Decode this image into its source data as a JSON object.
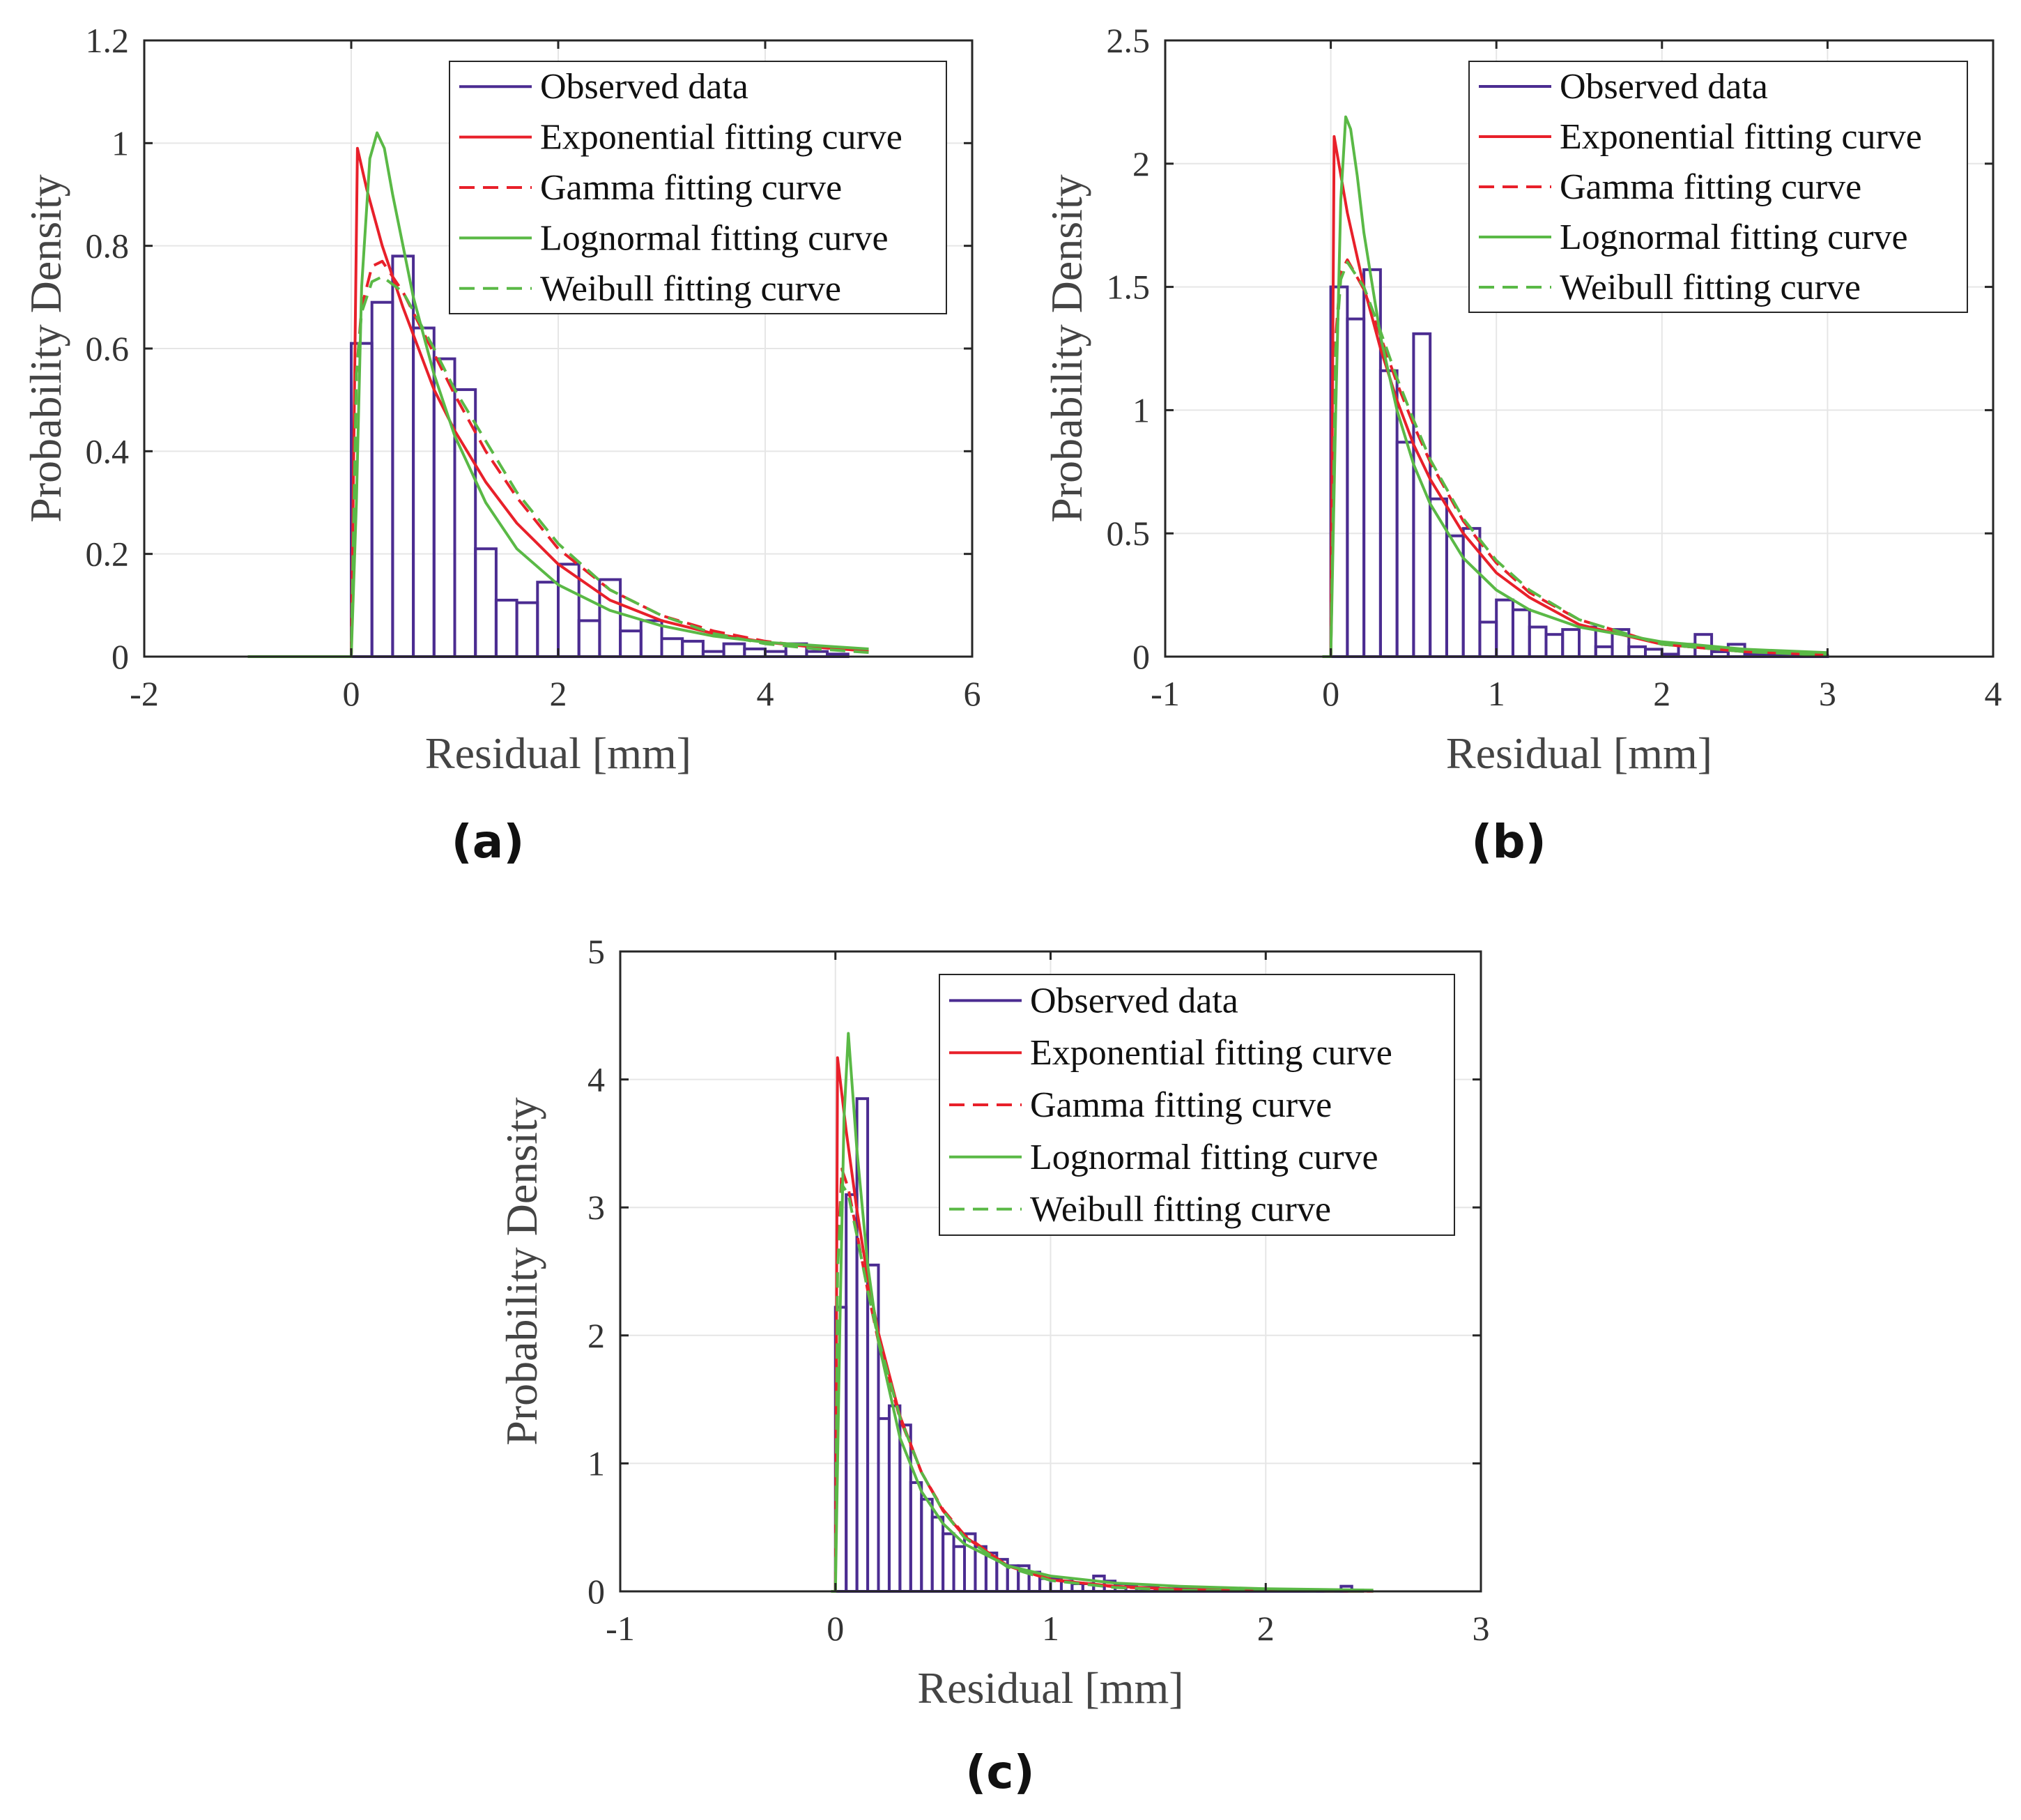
{
  "figure": {
    "legend_labels": [
      "Observed data",
      "Exponential fitting curve",
      "Gamma fitting curve",
      "Lognormal fitting curve",
      "Weibull fitting curve"
    ],
    "colors": {
      "observed": "#4b2c91",
      "red": "#e8202a",
      "green": "#5ab946",
      "grid": "#e6e6e6",
      "axis": "#262626"
    }
  },
  "chart_data": [
    {
      "type": "bar",
      "panel_label": "(a)",
      "xlabel": "Residual [mm]",
      "ylabel": "Probability Density",
      "xlim": [
        -2,
        6
      ],
      "ylim": [
        0,
        1.2
      ],
      "xticks": [
        -2,
        0,
        2,
        4,
        6
      ],
      "yticks": [
        0,
        0.2,
        0.4,
        0.6,
        0.8,
        1,
        1.2
      ],
      "xtick_labels": [
        "-2",
        "0",
        "2",
        "4",
        "6"
      ],
      "ytick_labels": [
        "0",
        "0.2",
        "0.4",
        "0.6",
        "0.8",
        "1",
        "1.2"
      ],
      "grid": true,
      "legend_position": "top-right",
      "histogram": {
        "name": "Observed data",
        "bin_start": 0,
        "bin_width": 0.2,
        "values": [
          0.61,
          0.69,
          0.78,
          0.64,
          0.58,
          0.52,
          0.21,
          0.11,
          0.105,
          0.145,
          0.18,
          0.07,
          0.15,
          0.05,
          0.07,
          0.035,
          0.03,
          0.01,
          0.025,
          0.015,
          0.01,
          0.025,
          0.01,
          0.005
        ]
      },
      "curves": [
        {
          "name": "Exponential fitting curve",
          "color": "red",
          "dash": false,
          "x": [
            -1,
            0,
            0.06,
            0.15,
            0.3,
            0.5,
            0.8,
            1.0,
            1.3,
            1.6,
            2.0,
            2.5,
            3.0,
            3.5,
            4.0,
            4.5,
            5.0
          ],
          "y": [
            0,
            0,
            0.99,
            0.91,
            0.8,
            0.68,
            0.52,
            0.44,
            0.34,
            0.26,
            0.18,
            0.11,
            0.07,
            0.045,
            0.028,
            0.018,
            0.011
          ]
        },
        {
          "name": "Gamma fitting curve",
          "color": "red",
          "dash": true,
          "x": [
            -1,
            0,
            0.05,
            0.1,
            0.2,
            0.3,
            0.5,
            0.8,
            1.0,
            1.3,
            1.6,
            2.0,
            2.5,
            3.0,
            3.5,
            4.0,
            4.5,
            5.0
          ],
          "y": [
            0,
            0,
            0.55,
            0.68,
            0.76,
            0.77,
            0.71,
            0.59,
            0.51,
            0.4,
            0.31,
            0.21,
            0.13,
            0.08,
            0.05,
            0.03,
            0.018,
            0.011
          ]
        },
        {
          "name": "Lognormal fitting curve",
          "color": "green",
          "dash": false,
          "x": [
            -1,
            0,
            0.05,
            0.1,
            0.18,
            0.25,
            0.32,
            0.4,
            0.5,
            0.6,
            0.8,
            1.0,
            1.3,
            1.6,
            2.0,
            2.5,
            3.0,
            3.5,
            4.0,
            5.0
          ],
          "y": [
            0,
            0,
            0.3,
            0.72,
            0.97,
            1.02,
            0.99,
            0.9,
            0.8,
            0.7,
            0.55,
            0.43,
            0.3,
            0.21,
            0.14,
            0.09,
            0.06,
            0.04,
            0.028,
            0.015
          ]
        },
        {
          "name": "Weibull fitting curve",
          "color": "green",
          "dash": true,
          "x": [
            -1,
            0,
            0.05,
            0.1,
            0.2,
            0.3,
            0.5,
            0.8,
            1.0,
            1.3,
            1.6,
            2.0,
            2.5,
            3.0,
            3.5,
            4.0,
            4.5,
            5.0
          ],
          "y": [
            0,
            0,
            0.55,
            0.67,
            0.73,
            0.74,
            0.71,
            0.6,
            0.52,
            0.42,
            0.32,
            0.22,
            0.13,
            0.08,
            0.045,
            0.025,
            0.015,
            0.008
          ]
        }
      ]
    },
    {
      "type": "bar",
      "panel_label": "(b)",
      "xlabel": "Residual [mm]",
      "ylabel": "Probability Density",
      "xlim": [
        -1,
        4
      ],
      "ylim": [
        0,
        2.5
      ],
      "xticks": [
        -1,
        0,
        1,
        2,
        3,
        4
      ],
      "yticks": [
        0,
        0.5,
        1,
        1.5,
        2,
        2.5
      ],
      "xtick_labels": [
        "-1",
        "0",
        "1",
        "2",
        "3",
        "4"
      ],
      "ytick_labels": [
        "0",
        "0.5",
        "1",
        "1.5",
        "2",
        "2.5"
      ],
      "grid": true,
      "legend_position": "top-right",
      "histogram": {
        "name": "Observed data",
        "bin_start": 0,
        "bin_width": 0.1,
        "values": [
          1.5,
          1.37,
          1.57,
          1.16,
          0.87,
          1.31,
          0.64,
          0.49,
          0.52,
          0.14,
          0.23,
          0.19,
          0.12,
          0.09,
          0.11,
          0.12,
          0.04,
          0.11,
          0.04,
          0.03,
          0.01,
          0.05,
          0.09,
          0.02,
          0.05,
          0.01,
          0.01,
          0.01,
          0.01,
          0.005
        ]
      },
      "curves": [
        {
          "name": "Exponential fitting curve",
          "color": "red",
          "dash": false,
          "x": [
            -0.05,
            0,
            0.02,
            0.1,
            0.2,
            0.3,
            0.4,
            0.5,
            0.6,
            0.8,
            1.0,
            1.2,
            1.5,
            2.0,
            2.5,
            3.0
          ],
          "y": [
            0,
            0,
            2.11,
            1.8,
            1.5,
            1.25,
            1.04,
            0.86,
            0.72,
            0.5,
            0.34,
            0.24,
            0.13,
            0.05,
            0.02,
            0.008
          ]
        },
        {
          "name": "Gamma fitting curve",
          "color": "red",
          "dash": true,
          "x": [
            -0.05,
            0,
            0.03,
            0.06,
            0.1,
            0.2,
            0.3,
            0.4,
            0.5,
            0.6,
            0.8,
            1.0,
            1.2,
            1.5,
            2.0,
            2.5,
            3.0
          ],
          "y": [
            0,
            0,
            1.3,
            1.56,
            1.61,
            1.49,
            1.3,
            1.11,
            0.94,
            0.79,
            0.55,
            0.38,
            0.26,
            0.15,
            0.05,
            0.02,
            0.007
          ]
        },
        {
          "name": "Lognormal fitting curve",
          "color": "green",
          "dash": false,
          "x": [
            -0.05,
            0,
            0.03,
            0.06,
            0.09,
            0.12,
            0.16,
            0.2,
            0.3,
            0.4,
            0.5,
            0.6,
            0.8,
            1.0,
            1.2,
            1.5,
            2.0,
            2.5,
            3.0
          ],
          "y": [
            0,
            0,
            1.0,
            1.85,
            2.19,
            2.14,
            1.95,
            1.72,
            1.3,
            1.0,
            0.78,
            0.62,
            0.4,
            0.27,
            0.19,
            0.12,
            0.06,
            0.03,
            0.016
          ]
        },
        {
          "name": "Weibull fitting curve",
          "color": "green",
          "dash": true,
          "x": [
            -0.05,
            0,
            0.03,
            0.06,
            0.1,
            0.2,
            0.3,
            0.4,
            0.5,
            0.6,
            0.8,
            1.0,
            1.2,
            1.5,
            2.0,
            2.5,
            3.0
          ],
          "y": [
            0,
            0,
            1.25,
            1.53,
            1.6,
            1.5,
            1.32,
            1.13,
            0.96,
            0.8,
            0.56,
            0.39,
            0.27,
            0.15,
            0.05,
            0.02,
            0.006
          ]
        }
      ]
    },
    {
      "type": "bar",
      "panel_label": "(c)",
      "xlabel": "Residual [mm]",
      "ylabel": "Probability Density",
      "xlim": [
        -1,
        3
      ],
      "ylim": [
        0,
        5
      ],
      "xticks": [
        -1,
        0,
        1,
        2,
        3
      ],
      "yticks": [
        0,
        1,
        2,
        3,
        4,
        5
      ],
      "xtick_labels": [
        "-1",
        "0",
        "1",
        "2",
        "3"
      ],
      "ytick_labels": [
        "0",
        "1",
        "2",
        "3",
        "4",
        "5"
      ],
      "grid": true,
      "legend_position": "top-right",
      "histogram": {
        "name": "Observed data",
        "bin_start": 0,
        "bin_width": 0.05,
        "values": [
          2.22,
          3.1,
          3.85,
          2.55,
          1.35,
          1.45,
          1.3,
          0.85,
          0.72,
          0.58,
          0.45,
          0.35,
          0.45,
          0.35,
          0.3,
          0.25,
          0.2,
          0.2,
          0.15,
          0.1,
          0.1,
          0.08,
          0.06,
          0.06,
          0.12,
          0.08,
          0.06,
          0.04,
          0.03,
          0.03,
          0.02,
          0.02,
          0.03,
          0.02,
          0.02,
          0.01,
          0.01,
          0.01,
          0.01,
          0.01,
          0.01,
          0.01,
          0.01,
          0.01,
          0.01,
          0.01,
          0.01,
          0.04,
          0.01
        ]
      },
      "curves": [
        {
          "name": "Exponential fitting curve",
          "color": "red",
          "dash": false,
          "x": [
            -0.02,
            0,
            0.01,
            0.05,
            0.1,
            0.15,
            0.2,
            0.3,
            0.4,
            0.5,
            0.6,
            0.8,
            1.0,
            1.3,
            1.6,
            2.0,
            2.5
          ],
          "y": [
            0,
            0,
            4.17,
            3.6,
            2.98,
            2.45,
            2.02,
            1.37,
            0.93,
            0.63,
            0.43,
            0.2,
            0.09,
            0.04,
            0.015,
            0.005,
            0.001
          ]
        },
        {
          "name": "Gamma fitting curve",
          "color": "red",
          "dash": true,
          "x": [
            -0.02,
            0,
            0.01,
            0.03,
            0.06,
            0.1,
            0.15,
            0.2,
            0.3,
            0.4,
            0.5,
            0.6,
            0.8,
            1.0,
            1.3,
            1.6,
            2.0,
            2.5
          ],
          "y": [
            0,
            0,
            2.6,
            3.3,
            3.15,
            2.8,
            2.35,
            1.95,
            1.35,
            0.93,
            0.64,
            0.44,
            0.2,
            0.095,
            0.035,
            0.013,
            0.004,
            0.001
          ]
        },
        {
          "name": "Lognormal fitting curve",
          "color": "green",
          "dash": false,
          "x": [
            -0.02,
            0,
            0.02,
            0.04,
            0.06,
            0.08,
            0.1,
            0.15,
            0.2,
            0.3,
            0.4,
            0.5,
            0.6,
            0.8,
            1.0,
            1.3,
            1.6,
            2.0,
            2.5
          ],
          "y": [
            0,
            0,
            2.0,
            3.7,
            4.36,
            3.9,
            3.45,
            2.55,
            1.95,
            1.2,
            0.78,
            0.53,
            0.37,
            0.2,
            0.12,
            0.065,
            0.04,
            0.02,
            0.01
          ]
        },
        {
          "name": "Weibull fitting curve",
          "color": "green",
          "dash": true,
          "x": [
            -0.02,
            0,
            0.01,
            0.03,
            0.06,
            0.1,
            0.15,
            0.2,
            0.3,
            0.4,
            0.5,
            0.6,
            0.8,
            1.0,
            1.3,
            1.6,
            2.0,
            2.5
          ],
          "y": [
            0,
            0,
            2.5,
            3.18,
            3.1,
            2.78,
            2.35,
            1.97,
            1.36,
            0.93,
            0.63,
            0.42,
            0.19,
            0.085,
            0.03,
            0.01,
            0.003,
            0.001
          ]
        }
      ]
    }
  ]
}
